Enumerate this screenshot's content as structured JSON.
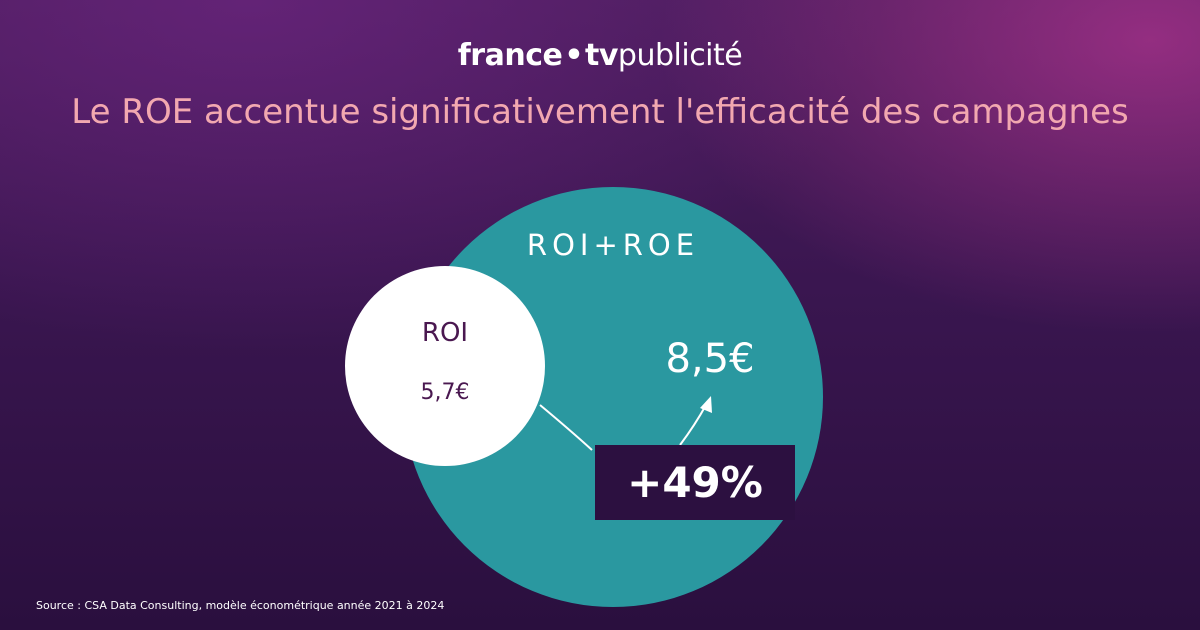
{
  "brand": {
    "part1": "france",
    "dot": "•",
    "part2": "tv",
    "part3": "publicité"
  },
  "title": "Le ROE accentue significativement l'efficacité des campagnes",
  "diagram": {
    "outer_label": "ROI+ROE",
    "outer_value": "8,5€",
    "inner_label": "ROI",
    "inner_value": "5,7€",
    "increase": "+49%"
  },
  "source": "Source : CSA Data Consulting, modèle économétrique année 2021 à 2024",
  "colors": {
    "outer_circle": "#2a98a0",
    "inner_circle": "#ffffff",
    "title": "#f2a8b0",
    "badge": "#2c1040"
  }
}
